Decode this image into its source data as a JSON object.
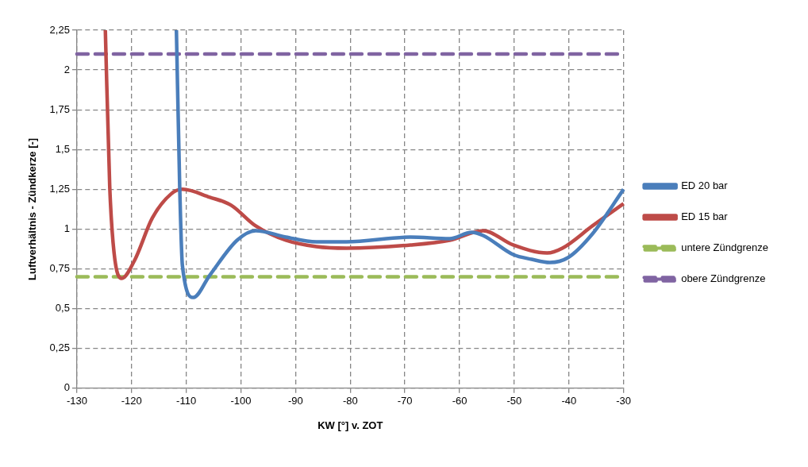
{
  "chart_data": {
    "type": "line",
    "xlabel": "KW [°] v. ZOT",
    "ylabel": "Luftverhältnis - Zündkerze [-]",
    "xlim": [
      -130,
      -30
    ],
    "xticks": [
      -130,
      -120,
      -110,
      -100,
      -90,
      -80,
      -70,
      -60,
      -50,
      -40,
      -30
    ],
    "ylim": [
      0,
      2.25
    ],
    "yticks": [
      0,
      {
        "value": 0.25,
        "label": "0,25"
      },
      {
        "value": 0.5,
        "label": "0,5"
      },
      {
        "value": 0.75,
        "label": "0,75"
      },
      1,
      {
        "value": 1.25,
        "label": "1,25"
      },
      {
        "value": 1.5,
        "label": "1,5"
      },
      {
        "value": 1.75,
        "label": "1,75"
      },
      2,
      {
        "value": 2.25,
        "label": "2,25"
      }
    ],
    "grid": true,
    "legend": "right",
    "marker": "none",
    "series": [
      {
        "name": "ED 20 bar",
        "color": "#4a7ebb",
        "line_style": "solid",
        "x": [
          -111.8,
          -111.2,
          -110.7,
          -108.7,
          -105.7,
          -100.7,
          -97.3,
          -91.8,
          -86.2,
          -80.7,
          -69,
          -61.8,
          -57.8,
          -55.7,
          -50.2,
          -46.8,
          -43.5,
          -40.2,
          -35.7,
          -30
        ],
        "values": [
          2.25,
          1.27,
          0.77,
          0.57,
          0.71,
          0.93,
          0.99,
          0.95,
          0.92,
          0.92,
          0.95,
          0.94,
          0.98,
          0.96,
          0.84,
          0.81,
          0.79,
          0.82,
          0.97,
          1.25
        ]
      },
      {
        "name": "ED 15 bar",
        "color": "#be4b48",
        "line_style": "solid",
        "x": [
          -124.8,
          -124,
          -123.2,
          -121.8,
          -119.5,
          -116.2,
          -112.8,
          -110.7,
          -105.7,
          -101.8,
          -97.3,
          -91.8,
          -86.2,
          -80.7,
          -69,
          -61.8,
          -55.7,
          -50.2,
          -44,
          -41.2,
          -35.7,
          -30
        ],
        "values": [
          2.25,
          1.27,
          0.85,
          0.69,
          0.8,
          1.07,
          1.22,
          1.25,
          1.2,
          1.15,
          1.02,
          0.93,
          0.89,
          0.88,
          0.9,
          0.93,
          0.99,
          0.9,
          0.85,
          0.88,
          1.02,
          1.16
        ]
      },
      {
        "name": "untere Zündgrenze",
        "color": "#9bbb59",
        "line_style": "dashed",
        "x": [
          -130,
          -30
        ],
        "values": [
          0.7,
          0.7
        ]
      },
      {
        "name": "obere Zündgrenze",
        "color": "#8064a2",
        "line_style": "dashed",
        "x": [
          -130,
          -30
        ],
        "values": [
          2.1,
          2.1
        ]
      }
    ]
  }
}
